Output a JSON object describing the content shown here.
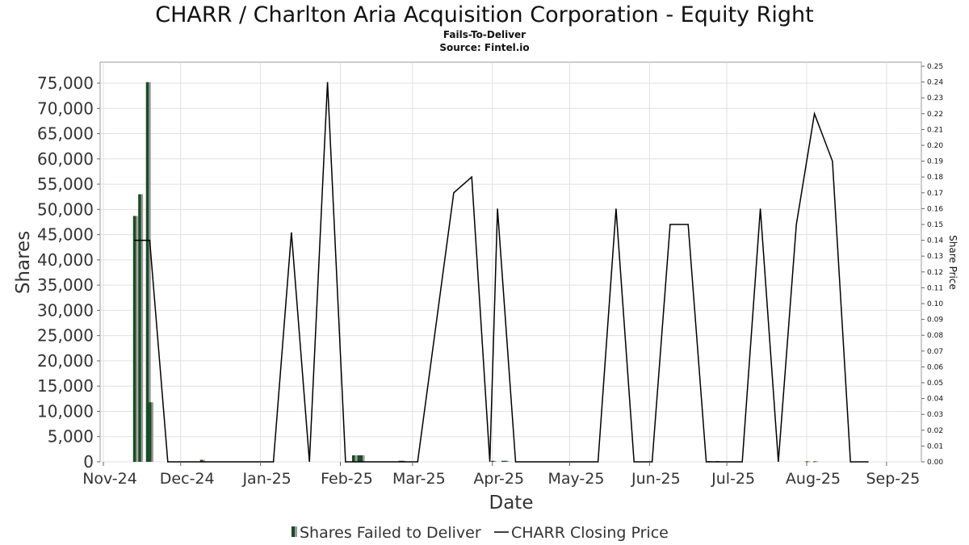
{
  "chart_data": {
    "type": "bar",
    "title": "CHARR / Charlton Aria Acquisition Corporation - Equity Right",
    "subtitle": "Fails-To-Deliver",
    "source": "Source: Fintel.io",
    "xlabel": "Date",
    "ylabel": "Shares",
    "y2label": "Share Price",
    "x_ticks": [
      "Nov-24",
      "Dec-24",
      "Jan-25",
      "Feb-25",
      "Mar-25",
      "Apr-25",
      "May-25",
      "Jun-25",
      "Jul-25",
      "Aug-25",
      "Sep-25"
    ],
    "x_range": [
      "2024-11-01",
      "2025-09-12"
    ],
    "ylim": [
      0,
      79000
    ],
    "y_ticks": [
      "0",
      "5,000",
      "10,000",
      "15,000",
      "20,000",
      "25,000",
      "30,000",
      "35,000",
      "40,000",
      "45,000",
      "50,000",
      "55,000",
      "60,000",
      "65,000",
      "70,000",
      "75,000"
    ],
    "y2lim": [
      0,
      0.25
    ],
    "y2_ticks": [
      "0.00",
      "0.01",
      "0.02",
      "0.03",
      "0.04",
      "0.05",
      "0.06",
      "0.07",
      "0.08",
      "0.09",
      "0.10",
      "0.11",
      "0.12",
      "0.13",
      "0.14",
      "0.15",
      "0.16",
      "0.17",
      "0.18",
      "0.19",
      "0.20",
      "0.21",
      "0.22",
      "0.23",
      "0.24",
      "0.25"
    ],
    "grid": true,
    "legend_position": "bottom",
    "colors": {
      "bars": "#1a4d24",
      "bar_shadow": "#999999",
      "line": "#000000",
      "grid": "#e0e0e0"
    },
    "series": [
      {
        "name": "Shares Failed to Deliver",
        "type": "bar",
        "points": [
          {
            "x": "2024-11-13",
            "y": 48700
          },
          {
            "x": "2024-11-15",
            "y": 53000
          },
          {
            "x": "2024-11-18",
            "y": 75200
          },
          {
            "x": "2024-11-19",
            "y": 11800
          },
          {
            "x": "2024-12-09",
            "y": 400
          },
          {
            "x": "2025-02-06",
            "y": 1300
          },
          {
            "x": "2025-02-08",
            "y": 1300
          },
          {
            "x": "2025-02-09",
            "y": 1300
          },
          {
            "x": "2025-02-24",
            "y": 200
          },
          {
            "x": "2025-02-25",
            "y": 200
          },
          {
            "x": "2025-04-01",
            "y": 200
          },
          {
            "x": "2025-04-05",
            "y": 200
          },
          {
            "x": "2025-04-06",
            "y": 200
          },
          {
            "x": "2025-06-24",
            "y": 150
          },
          {
            "x": "2025-06-27",
            "y": 150
          },
          {
            "x": "2025-08-01",
            "y": 100
          },
          {
            "x": "2025-08-04",
            "y": 100
          }
        ]
      },
      {
        "name": "CHARR Closing Price",
        "type": "line",
        "points": [
          {
            "x": "2024-11-13",
            "y": 0.14
          },
          {
            "x": "2024-11-19",
            "y": 0.14
          },
          {
            "x": "2024-11-26",
            "y": 0.0
          },
          {
            "x": "2025-01-06",
            "y": 0.0
          },
          {
            "x": "2025-01-13",
            "y": 0.145
          },
          {
            "x": "2025-01-20",
            "y": 0.0
          },
          {
            "x": "2025-01-27",
            "y": 0.24
          },
          {
            "x": "2025-02-03",
            "y": 0.0
          },
          {
            "x": "2025-03-03",
            "y": 0.0
          },
          {
            "x": "2025-03-17",
            "y": 0.17
          },
          {
            "x": "2025-03-24",
            "y": 0.18
          },
          {
            "x": "2025-03-31",
            "y": 0.0
          },
          {
            "x": "2025-04-03",
            "y": 0.16
          },
          {
            "x": "2025-04-10",
            "y": 0.0
          },
          {
            "x": "2025-05-12",
            "y": 0.0
          },
          {
            "x": "2025-05-19",
            "y": 0.16
          },
          {
            "x": "2025-05-26",
            "y": 0.0
          },
          {
            "x": "2025-06-02",
            "y": 0.0
          },
          {
            "x": "2025-06-09",
            "y": 0.15
          },
          {
            "x": "2025-06-16",
            "y": 0.15
          },
          {
            "x": "2025-06-23",
            "y": 0.0
          },
          {
            "x": "2025-07-07",
            "y": 0.0
          },
          {
            "x": "2025-07-14",
            "y": 0.16
          },
          {
            "x": "2025-07-21",
            "y": 0.0
          },
          {
            "x": "2025-07-28",
            "y": 0.15
          },
          {
            "x": "2025-08-04",
            "y": 0.22
          },
          {
            "x": "2025-08-11",
            "y": 0.19
          },
          {
            "x": "2025-08-18",
            "y": 0.0
          },
          {
            "x": "2025-08-25",
            "y": 0.0
          }
        ]
      }
    ]
  }
}
